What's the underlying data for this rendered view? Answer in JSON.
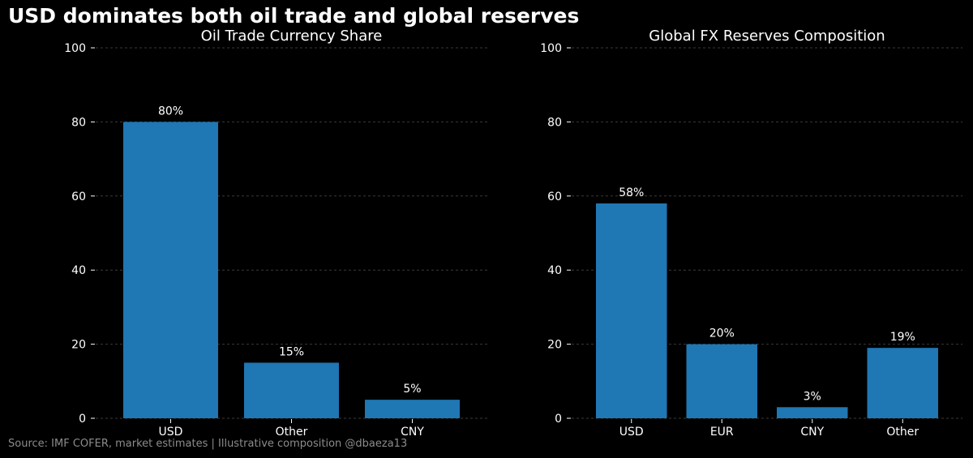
{
  "suptitle": "USD dominates both oil trade and global reserves",
  "footer": "Source: IMF COFER, market estimates | Illustrative composition @dbaeza13",
  "colors": {
    "background": "#000000",
    "bar": "#1f77b4",
    "text": "#ffffff",
    "grid": "#3a3a3a",
    "footer": "#8c8c8c"
  },
  "chart_data": [
    {
      "type": "bar",
      "title": "Oil Trade Currency Share",
      "categories": [
        "USD",
        "Other",
        "CNY"
      ],
      "values": [
        80,
        15,
        5
      ],
      "labels": [
        "80%",
        "15%",
        "5%"
      ],
      "xlabel": "",
      "ylabel": "",
      "ylim": [
        0,
        100
      ],
      "yticks": [
        0,
        20,
        40,
        60,
        80,
        100
      ],
      "grid": true
    },
    {
      "type": "bar",
      "title": "Global FX Reserves Composition",
      "categories": [
        "USD",
        "EUR",
        "CNY",
        "Other"
      ],
      "values": [
        58,
        20,
        3,
        19
      ],
      "labels": [
        "58%",
        "20%",
        "3%",
        "19%"
      ],
      "xlabel": "",
      "ylabel": "",
      "ylim": [
        0,
        100
      ],
      "yticks": [
        0,
        20,
        40,
        60,
        80,
        100
      ],
      "grid": true
    }
  ]
}
